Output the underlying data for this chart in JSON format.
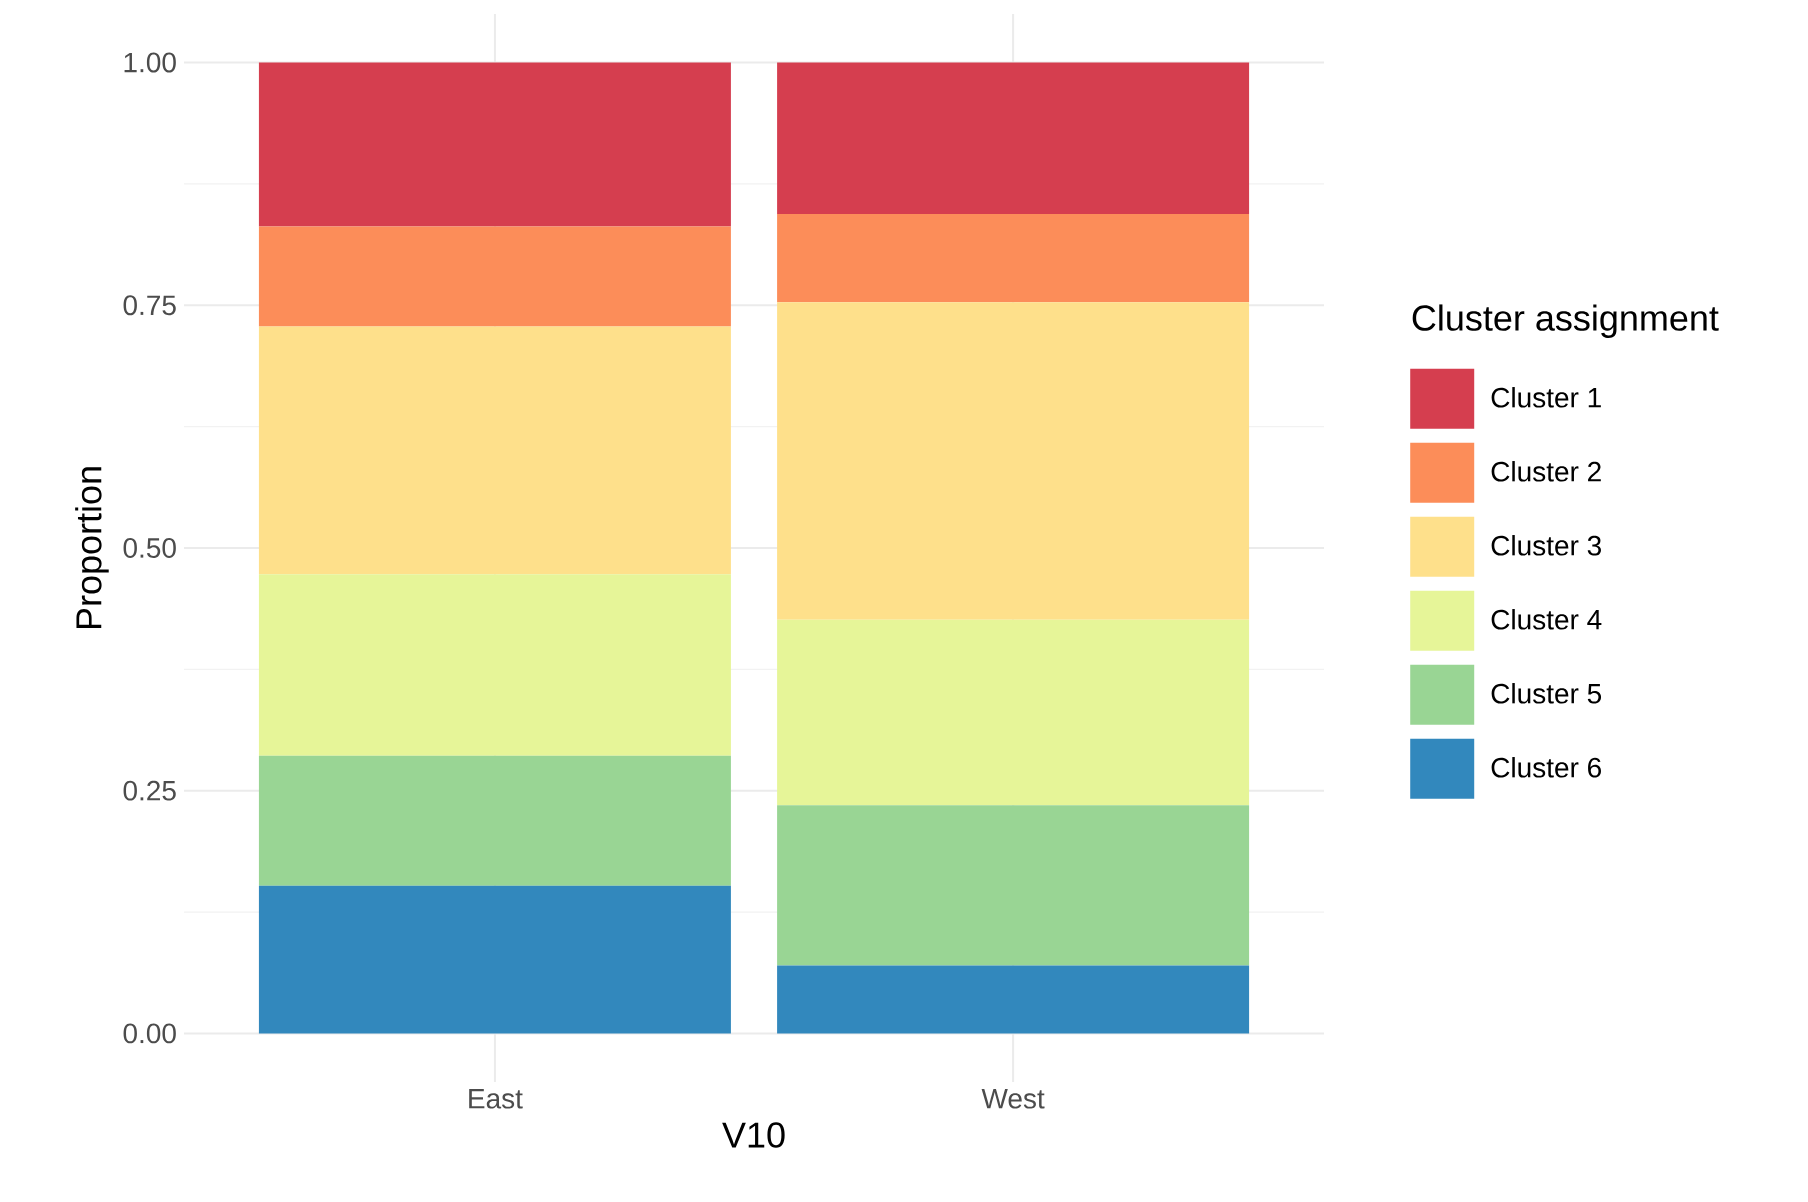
{
  "chart_data": {
    "type": "bar",
    "stacked": true,
    "xlabel": "V10",
    "ylabel": "Proportion",
    "legend_title": "Cluster assignment",
    "categories": [
      "East",
      "West"
    ],
    "series": [
      {
        "name": "Cluster 6",
        "color": "#3288bd",
        "values": [
          0.152,
          0.07
        ]
      },
      {
        "name": "Cluster 5",
        "color": "#99d594",
        "values": [
          0.134,
          0.165
        ]
      },
      {
        "name": "Cluster 4",
        "color": "#e6f598",
        "values": [
          0.187,
          0.191
        ]
      },
      {
        "name": "Cluster 3",
        "color": "#fee08b",
        "values": [
          0.255,
          0.327
        ]
      },
      {
        "name": "Cluster 2",
        "color": "#fc8d59",
        "values": [
          0.103,
          0.091
        ]
      },
      {
        "name": "Cluster 1",
        "color": "#d53e4f",
        "values": [
          0.169,
          0.156
        ]
      }
    ],
    "ylim": [
      -0.05,
      1.05
    ],
    "yticks": [
      {
        "value": 0,
        "label": "0.00"
      },
      {
        "value": 0.25,
        "label": "0.25"
      },
      {
        "value": 0.5,
        "label": "0.50"
      },
      {
        "value": 0.75,
        "label": "0.75"
      },
      {
        "value": 1,
        "label": "1.00"
      }
    ],
    "grid": true,
    "legend": "right"
  }
}
